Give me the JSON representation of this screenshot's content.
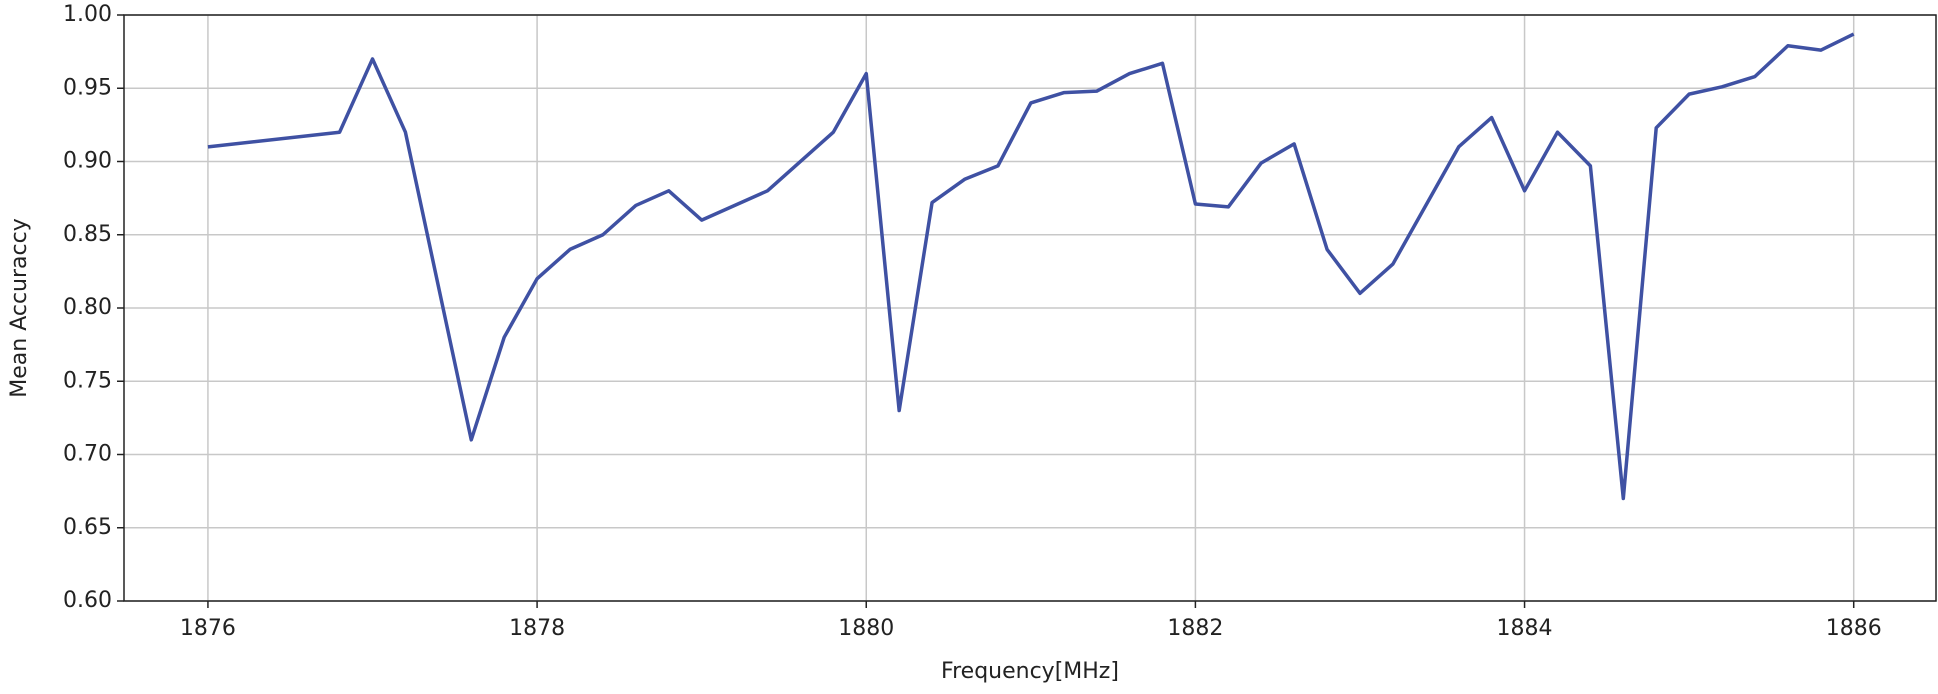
{
  "chart_data": {
    "type": "line",
    "xlabel": "Frequency[MHz]",
    "ylabel": "Mean Accuraccy",
    "x": [
      1876,
      1876.8,
      1877,
      1877.2,
      1877.6,
      1877.8,
      1878,
      1878.2,
      1878.4,
      1878.6,
      1878.8,
      1879,
      1879.4,
      1879.8,
      1880,
      1880.2,
      1880.4,
      1880.6,
      1880.8,
      1881,
      1881.2,
      1881.4,
      1881.6,
      1881.8,
      1882,
      1882.2,
      1882.4,
      1882.6,
      1882.8,
      1883,
      1883.2,
      1883.6,
      1883.8,
      1884,
      1884.2,
      1884.4,
      1884.6,
      1884.8,
      1885,
      1885.2,
      1885.4,
      1885.6,
      1885.8,
      1886
    ],
    "values": [
      0.91,
      0.92,
      0.97,
      0.92,
      0.71,
      0.78,
      0.82,
      0.84,
      0.85,
      0.87,
      0.88,
      0.86,
      0.88,
      0.92,
      0.96,
      0.73,
      0.872,
      0.888,
      0.897,
      0.94,
      0.947,
      0.948,
      0.96,
      0.967,
      0.871,
      0.869,
      0.899,
      0.912,
      0.84,
      0.81,
      0.83,
      0.91,
      0.93,
      0.88,
      0.92,
      0.897,
      0.67,
      0.923,
      0.946,
      0.951,
      0.958,
      0.979,
      0.976,
      0.987
    ],
    "color": "#3f51a3",
    "xlim": [
      1875.49,
      1886.5
    ],
    "xticks": [
      1876,
      1878,
      1880,
      1882,
      1884,
      1886
    ],
    "ylim": [
      0.6,
      1.0
    ],
    "yticks": [
      {
        "value": 0.6,
        "label": "0.60"
      },
      0.65,
      {
        "value": 0.7,
        "label": "0.70"
      },
      0.75,
      {
        "value": 0.8,
        "label": "0.80"
      },
      0.85,
      {
        "value": 0.9,
        "label": "0.90"
      },
      0.95,
      {
        "value": 1.0,
        "label": "1.00"
      }
    ],
    "grid": true
  }
}
